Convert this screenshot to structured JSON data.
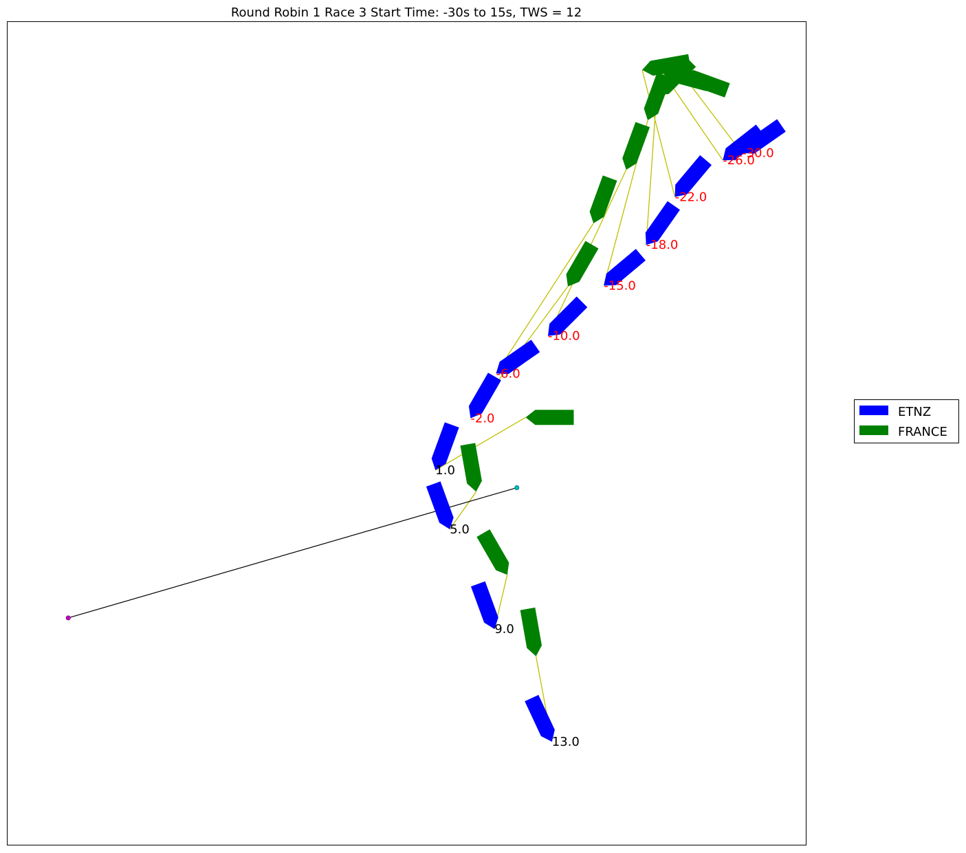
{
  "colors": {
    "etnz": "#0000ff",
    "france": "#008000",
    "connector": "#bfbf00",
    "start_line": "#000000",
    "pin_end": "#cc00cc",
    "committee_end": "#00bfbf",
    "pre_start_label": "#ff0000",
    "post_start_label": "#000000"
  },
  "chart_data": {
    "type": "scatter",
    "title": "Round Robin 1 Race 3 Start Time: -30s to 15s, TWS = 12",
    "xlabel": "",
    "ylabel": "",
    "xlim": [
      0,
      1000
    ],
    "ylim": [
      0,
      1030
    ],
    "grid": false,
    "axis_ticks": false,
    "legend": {
      "placement": "outside-right",
      "entries": [
        {
          "label": "ETNZ",
          "color": "#0000ff"
        },
        {
          "label": "FRANCE",
          "color": "#008000"
        }
      ]
    },
    "start_line": {
      "pin": {
        "x": 76,
        "y": 284
      },
      "committee": {
        "x": 638,
        "y": 447
      }
    },
    "snapshots": [
      {
        "time": -30.0,
        "label": "-30.0",
        "etnz": {
          "x": 920,
          "y": 866,
          "heading": 235
        },
        "france": {
          "x": 845,
          "y": 965,
          "heading": 290
        }
      },
      {
        "time": -26.0,
        "label": "-26.0",
        "etnz": {
          "x": 896,
          "y": 857,
          "heading": 232
        },
        "france": {
          "x": 820,
          "y": 968,
          "heading": 285
        }
      },
      {
        "time": -22.0,
        "label": "-22.0",
        "etnz": {
          "x": 836,
          "y": 811,
          "heading": 220
        },
        "france": {
          "x": 795,
          "y": 970,
          "heading": 260
        }
      },
      {
        "time": -18.0,
        "label": "-18.0",
        "etnz": {
          "x": 800,
          "y": 751,
          "heading": 215
        },
        "france": {
          "x": 813,
          "y": 938,
          "heading": 225
        }
      },
      {
        "time": -15.0,
        "label": "-15.0",
        "etnz": {
          "x": 747,
          "y": 700,
          "heading": 230
        },
        "france": {
          "x": 802,
          "y": 907,
          "heading": 200
        }
      },
      {
        "time": -10.0,
        "label": "-10.0",
        "etnz": {
          "x": 677,
          "y": 637,
          "heading": 225
        },
        "france": {
          "x": 775,
          "y": 845,
          "heading": 200
        }
      },
      {
        "time": -6.0,
        "label": "-6.0",
        "etnz": {
          "x": 612,
          "y": 590,
          "heading": 235
        },
        "france": {
          "x": 734,
          "y": 778,
          "heading": 200
        }
      },
      {
        "time": -2.0,
        "label": "-2.0",
        "etnz": {
          "x": 580,
          "y": 534,
          "heading": 210
        },
        "france": {
          "x": 702,
          "y": 699,
          "heading": 210
        }
      },
      {
        "time": 1.0,
        "label": "1.0",
        "etnz": {
          "x": 536,
          "y": 469,
          "heading": 200
        },
        "france": {
          "x": 649,
          "y": 535,
          "heading": 270
        }
      },
      {
        "time": 5.0,
        "label": "5.0",
        "etnz": {
          "x": 554,
          "y": 395,
          "heading": 160
        },
        "france": {
          "x": 587,
          "y": 442,
          "heading": 170
        }
      },
      {
        "time": 9.0,
        "label": "9.0",
        "etnz": {
          "x": 610,
          "y": 270,
          "heading": 160
        },
        "france": {
          "x": 626,
          "y": 338,
          "heading": 150
        }
      },
      {
        "time": 13.0,
        "label": "13.0",
        "etnz": {
          "x": 682,
          "y": 129,
          "heading": 155
        },
        "france": {
          "x": 662,
          "y": 236,
          "heading": 170
        }
      }
    ]
  }
}
